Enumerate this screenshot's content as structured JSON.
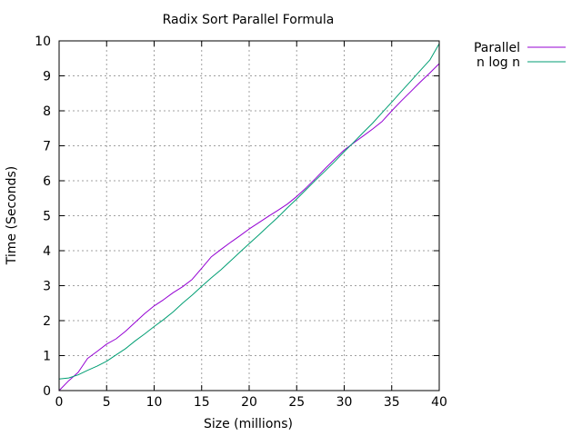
{
  "chart_data": {
    "type": "line",
    "title": "Radix Sort Parallel Formula",
    "xlabel": "Size (millions)",
    "ylabel": "Time (Seconds)",
    "xlim": [
      0,
      40
    ],
    "ylim": [
      0,
      10
    ],
    "xticks": [
      "0",
      "5",
      "10",
      "15",
      "20",
      "25",
      "30",
      "35",
      "40"
    ],
    "yticks": [
      "0",
      "1",
      "2",
      "3",
      "4",
      "5",
      "6",
      "7",
      "8",
      "9",
      "10"
    ],
    "grid": true,
    "legend_position": "top-right outside",
    "series": [
      {
        "name": "Parallel",
        "color": "#9400d3",
        "points": [
          [
            0,
            0.0
          ],
          [
            1,
            0.28
          ],
          [
            2,
            0.52
          ],
          [
            3,
            0.92
          ],
          [
            4,
            1.12
          ],
          [
            5,
            1.33
          ],
          [
            6,
            1.48
          ],
          [
            7,
            1.7
          ],
          [
            8,
            1.95
          ],
          [
            9,
            2.2
          ],
          [
            10,
            2.42
          ],
          [
            11,
            2.6
          ],
          [
            12,
            2.8
          ],
          [
            13,
            2.97
          ],
          [
            14,
            3.18
          ],
          [
            15,
            3.5
          ],
          [
            16,
            3.82
          ],
          [
            17,
            4.03
          ],
          [
            18,
            4.23
          ],
          [
            19,
            4.42
          ],
          [
            20,
            4.62
          ],
          [
            21,
            4.8
          ],
          [
            22,
            4.98
          ],
          [
            23,
            5.15
          ],
          [
            24,
            5.33
          ],
          [
            25,
            5.55
          ],
          [
            26,
            5.8
          ],
          [
            27,
            6.07
          ],
          [
            28,
            6.35
          ],
          [
            29,
            6.62
          ],
          [
            30,
            6.88
          ],
          [
            31,
            7.08
          ],
          [
            32,
            7.28
          ],
          [
            33,
            7.48
          ],
          [
            34,
            7.7
          ],
          [
            35,
            8.0
          ],
          [
            36,
            8.28
          ],
          [
            37,
            8.55
          ],
          [
            38,
            8.82
          ],
          [
            39,
            9.08
          ],
          [
            40,
            9.35
          ]
        ]
      },
      {
        "name": "n log n",
        "color": "#009e73",
        "points": [
          [
            0,
            0.33
          ],
          [
            1,
            0.36
          ],
          [
            2,
            0.45
          ],
          [
            3,
            0.58
          ],
          [
            4,
            0.7
          ],
          [
            5,
            0.84
          ],
          [
            6,
            1.02
          ],
          [
            7,
            1.2
          ],
          [
            8,
            1.42
          ],
          [
            9,
            1.62
          ],
          [
            10,
            1.83
          ],
          [
            11,
            2.03
          ],
          [
            12,
            2.25
          ],
          [
            13,
            2.5
          ],
          [
            14,
            2.73
          ],
          [
            15,
            2.98
          ],
          [
            16,
            3.22
          ],
          [
            17,
            3.45
          ],
          [
            18,
            3.7
          ],
          [
            19,
            3.95
          ],
          [
            20,
            4.2
          ],
          [
            21,
            4.45
          ],
          [
            22,
            4.7
          ],
          [
            23,
            4.95
          ],
          [
            24,
            5.22
          ],
          [
            25,
            5.48
          ],
          [
            26,
            5.75
          ],
          [
            27,
            6.02
          ],
          [
            28,
            6.28
          ],
          [
            29,
            6.55
          ],
          [
            30,
            6.83
          ],
          [
            31,
            7.1
          ],
          [
            32,
            7.38
          ],
          [
            33,
            7.65
          ],
          [
            34,
            7.95
          ],
          [
            35,
            8.25
          ],
          [
            36,
            8.55
          ],
          [
            37,
            8.85
          ],
          [
            38,
            9.15
          ],
          [
            39,
            9.45
          ],
          [
            40,
            9.92
          ]
        ]
      }
    ]
  }
}
